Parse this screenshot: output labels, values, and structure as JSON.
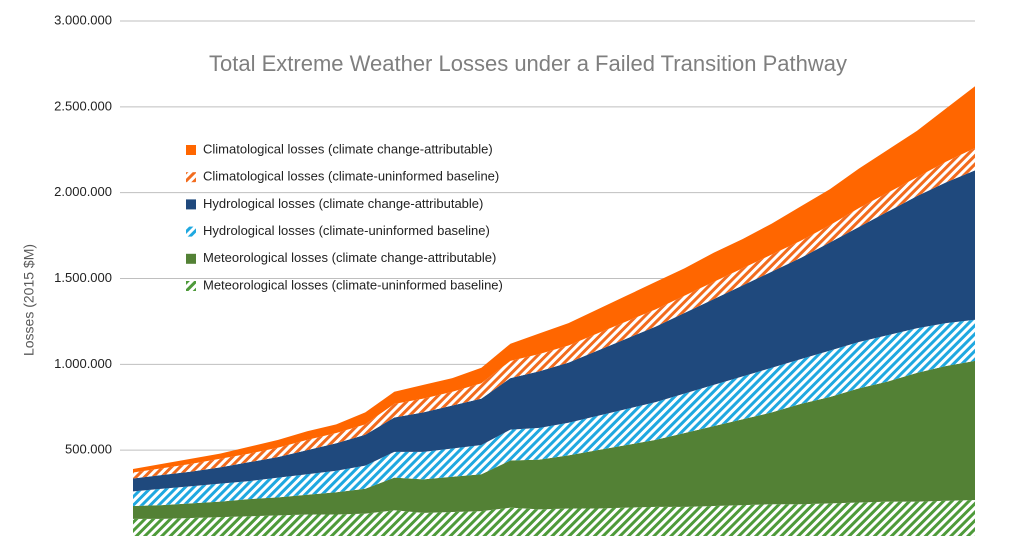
{
  "chart_data": {
    "type": "stacked-area",
    "title": "Total Extreme Weather Losses under a Failed Transition Pathway",
    "y_label": "Losses (2015 $M)",
    "categories": [
      null,
      null,
      null,
      null,
      null,
      null,
      null,
      null,
      null,
      null,
      null,
      null,
      null,
      null,
      null,
      null,
      null,
      null,
      null,
      null,
      null,
      null,
      null,
      null,
      null,
      null,
      null,
      null,
      null,
      null
    ],
    "series": [
      {
        "name": "Meteorological losses (climate-uninformed baseline)",
        "color": "#4e9a3a",
        "pattern": "hatch",
        "values": [
          100000,
          100000,
          105000,
          110000,
          115000,
          120000,
          125000,
          125000,
          130000,
          150000,
          135000,
          140000,
          145000,
          165000,
          155000,
          160000,
          160000,
          165000,
          170000,
          170000,
          175000,
          180000,
          185000,
          185000,
          190000,
          195000,
          200000,
          200000,
          205000,
          210000
        ]
      },
      {
        "name": "Meteorological losses (climate change-attributable)",
        "color": "#538135",
        "pattern": "solid",
        "values": [
          75000,
          80000,
          85000,
          90000,
          100000,
          105000,
          115000,
          130000,
          145000,
          190000,
          195000,
          205000,
          215000,
          275000,
          290000,
          310000,
          340000,
          365000,
          390000,
          430000,
          465000,
          500000,
          535000,
          585000,
          620000,
          665000,
          700000,
          750000,
          785000,
          810000
        ]
      },
      {
        "name": "Hydrological losses (climate-uninformed baseline)",
        "color": "#1fa8e0",
        "pattern": "hatch",
        "values": [
          85000,
          95000,
          100000,
          105000,
          105000,
          115000,
          120000,
          125000,
          135000,
          150000,
          160000,
          165000,
          170000,
          180000,
          185000,
          190000,
          200000,
          210000,
          220000,
          230000,
          240000,
          250000,
          260000,
          260000,
          270000,
          270000,
          270000,
          260000,
          250000,
          240000
        ]
      },
      {
        "name": "Hydrological losses (climate change-attributable)",
        "color": "#1f497d",
        "pattern": "solid",
        "values": [
          75000,
          80000,
          85000,
          95000,
          110000,
          120000,
          140000,
          160000,
          180000,
          200000,
          230000,
          250000,
          270000,
          300000,
          330000,
          350000,
          380000,
          410000,
          440000,
          470000,
          500000,
          530000,
          560000,
          590000,
          630000,
          670000,
          720000,
          770000,
          820000,
          870000
        ]
      },
      {
        "name": "Climatological losses (climate-uninformed baseline)",
        "color": "#f26b1d",
        "pattern": "hatch",
        "values": [
          35000,
          40000,
          45000,
          50000,
          50000,
          55000,
          60000,
          60000,
          60000,
          80000,
          80000,
          80000,
          90000,
          100000,
          100000,
          100000,
          100000,
          100000,
          100000,
          100000,
          100000,
          100000,
          100000,
          100000,
          100000,
          110000,
          110000,
          110000,
          120000,
          130000
        ]
      },
      {
        "name": "Climatological losses (climate change-attributable)",
        "color": "#ff6600",
        "pattern": "solid",
        "values": [
          20000,
          25000,
          30000,
          30000,
          40000,
          45000,
          50000,
          50000,
          70000,
          70000,
          80000,
          80000,
          90000,
          100000,
          120000,
          130000,
          140000,
          150000,
          160000,
          160000,
          170000,
          170000,
          180000,
          200000,
          210000,
          230000,
          250000,
          270000,
          310000,
          360000
        ]
      }
    ],
    "ylim": [
      0,
      3000000
    ],
    "yticks": [
      {
        "value": 500000,
        "label": "500.000"
      },
      {
        "value": 1000000,
        "label": "1.000.000"
      },
      {
        "value": 1500000,
        "label": "1.500.000"
      },
      {
        "value": 2000000,
        "label": "2.000.000"
      },
      {
        "value": 2500000,
        "label": "2.500.000"
      },
      {
        "value": 3000000,
        "label": "3.000.000"
      }
    ],
    "grid": true,
    "legend": "upper-left"
  }
}
